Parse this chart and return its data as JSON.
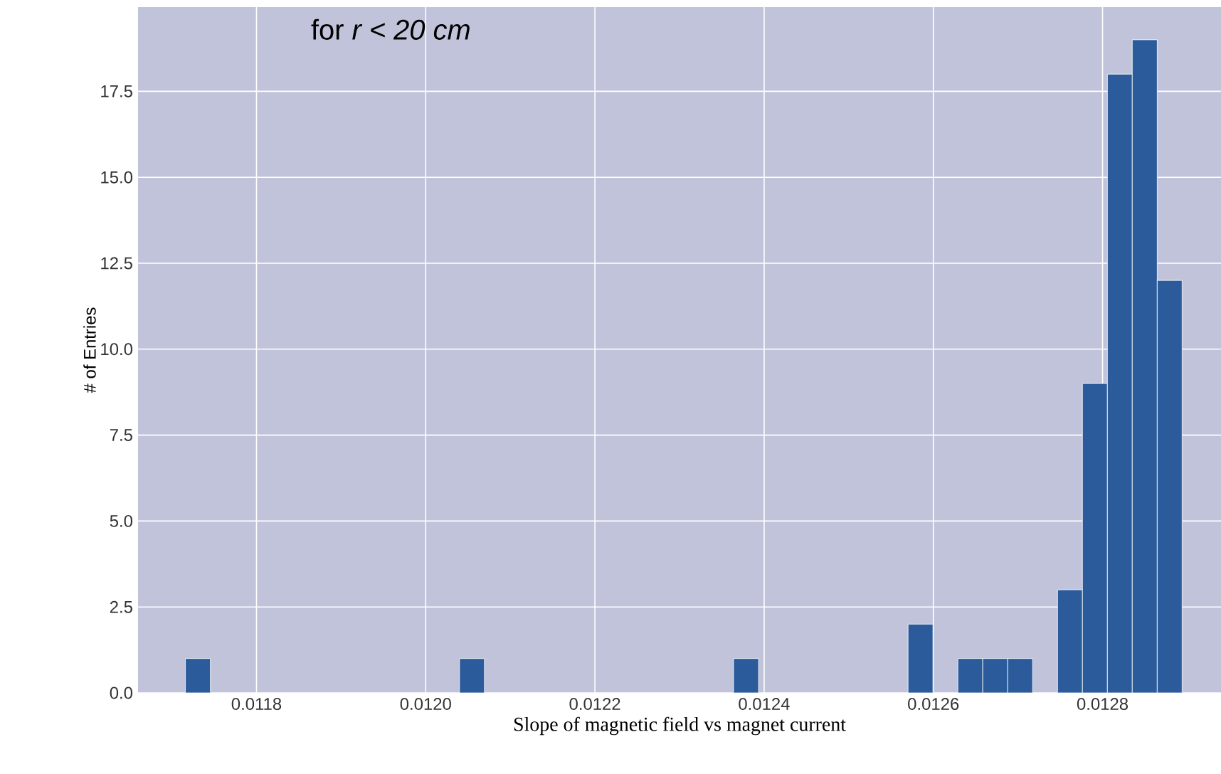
{
  "chart_data": {
    "type": "histogram",
    "xlabel": "Slope of magnetic field vs magnet current",
    "ylabel": "# of Entries",
    "annotations": [
      "for *r < 20 cm*"
    ],
    "bins": [
      0.011716,
      0.0117455,
      0.0117749,
      0.0118044,
      0.0118338,
      0.0118633,
      0.0118927,
      0.0119222,
      0.0119516,
      0.0119811,
      0.0120105,
      0.01204,
      0.0120694,
      0.0120989,
      0.0121283,
      0.0121578,
      0.0121872,
      0.0122167,
      0.0122461,
      0.0122756,
      0.012305,
      0.0123345,
      0.0123639,
      0.0123934,
      0.0124228,
      0.0124523,
      0.0124817,
      0.0125112,
      0.0125406,
      0.0125701,
      0.0125995,
      0.012629,
      0.0126584,
      0.0126879,
      0.0127173,
      0.0127468,
      0.0127762,
      0.0128057,
      0.0128351,
      0.0128646,
      0.012894
    ],
    "values": [
      1,
      0,
      0,
      0,
      0,
      0,
      0,
      0,
      0,
      0,
      0,
      1,
      0,
      0,
      0,
      0,
      0,
      0,
      0,
      0,
      0,
      0,
      1,
      0,
      0,
      0,
      0,
      0,
      0,
      2,
      0,
      1,
      1,
      1,
      0,
      3,
      9,
      18,
      19,
      12
    ],
    "color": "#2b5b9b",
    "xlim": [
      0.01166,
      0.01294
    ],
    "xticks": [
      0.0118,
      {
        "value": 0.012,
        "label": "0.0120"
      },
      0.0122,
      0.0124,
      0.0126,
      0.0128
    ],
    "ylim": [
      0,
      19.95
    ],
    "yticks": [
      {
        "value": 0,
        "label": "0.0"
      },
      {
        "value": 2.5,
        "label": "2.5"
      },
      {
        "value": 5,
        "label": "5.0"
      },
      {
        "value": 7.5,
        "label": "7.5"
      },
      {
        "value": 10,
        "label": "10.0"
      },
      {
        "value": 12.5,
        "label": "12.5"
      },
      {
        "value": 15,
        "label": "15.0"
      },
      {
        "value": 17.5,
        "label": "17.5"
      }
    ],
    "grid": true
  }
}
